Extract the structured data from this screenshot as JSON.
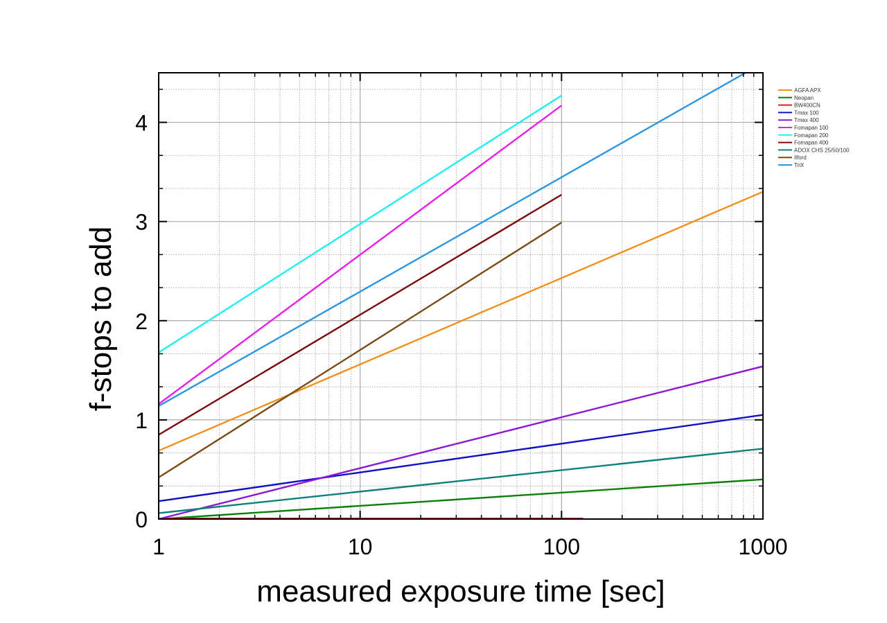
{
  "chart_data": {
    "type": "line",
    "xscale": "log",
    "xlabel": "measured exposure time [sec]",
    "ylabel": "f-stops to add",
    "xlim": [
      1,
      1000
    ],
    "ylim": [
      0,
      4.5
    ],
    "x_ticks": [
      1,
      10,
      100,
      1000
    ],
    "x_tick_labels": [
      "1",
      "10",
      "100",
      "1000"
    ],
    "y_ticks": [
      0,
      1,
      2,
      3,
      4
    ],
    "y_tick_labels": [
      "0",
      "1",
      "2",
      "3",
      "4"
    ],
    "grid": true,
    "legend_position": "top-right, outside plot",
    "series": [
      {
        "name": "AGFA APX",
        "color": "#f0901e",
        "x": [
          1,
          1000
        ],
        "y": [
          0.69,
          3.3
        ]
      },
      {
        "name": "Neopan",
        "color": "#0a7f0a",
        "x": [
          1,
          1000
        ],
        "y": [
          0.0,
          0.4
        ]
      },
      {
        "name": "BW400CN",
        "color": "#d42020",
        "x": [
          1,
          128
        ],
        "y": [
          0.0,
          0.0
        ]
      },
      {
        "name": "Tmax 100",
        "color": "#1010c8",
        "x": [
          1,
          1000
        ],
        "y": [
          0.18,
          1.05
        ]
      },
      {
        "name": "Tmax 400",
        "color": "#8a18d6",
        "x": [
          1,
          1000
        ],
        "y": [
          0.0,
          1.54
        ]
      },
      {
        "name": "Fomapan 100",
        "color": "#e81ee8",
        "x": [
          1,
          100
        ],
        "y": [
          1.16,
          4.17
        ]
      },
      {
        "name": "Fomapan 200",
        "color": "#1ef0f0",
        "x": [
          1,
          100
        ],
        "y": [
          1.68,
          4.27
        ]
      },
      {
        "name": "Fomapan 400",
        "color": "#7a0a0a",
        "x": [
          1,
          100
        ],
        "y": [
          0.85,
          3.27
        ]
      },
      {
        "name": "ADOX CHS 25/50/100",
        "color": "#0e8078",
        "x": [
          1,
          1000
        ],
        "y": [
          0.06,
          0.71
        ]
      },
      {
        "name": "Ilford",
        "color": "#7a4a14",
        "x": [
          1,
          100
        ],
        "y": [
          0.42,
          2.99
        ]
      },
      {
        "name": "TriX",
        "color": "#2c96e0",
        "x": [
          1,
          1000
        ],
        "y": [
          1.14,
          4.6
        ]
      }
    ]
  }
}
